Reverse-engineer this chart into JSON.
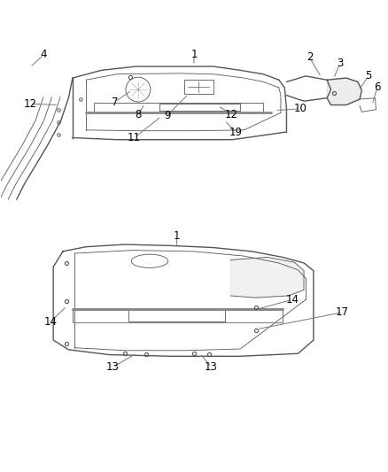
{
  "bg_color": "#ffffff",
  "label_color": "#000000",
  "diagram_line_color": "#555555",
  "leader_color": "#777777",
  "font_size": 8.5
}
